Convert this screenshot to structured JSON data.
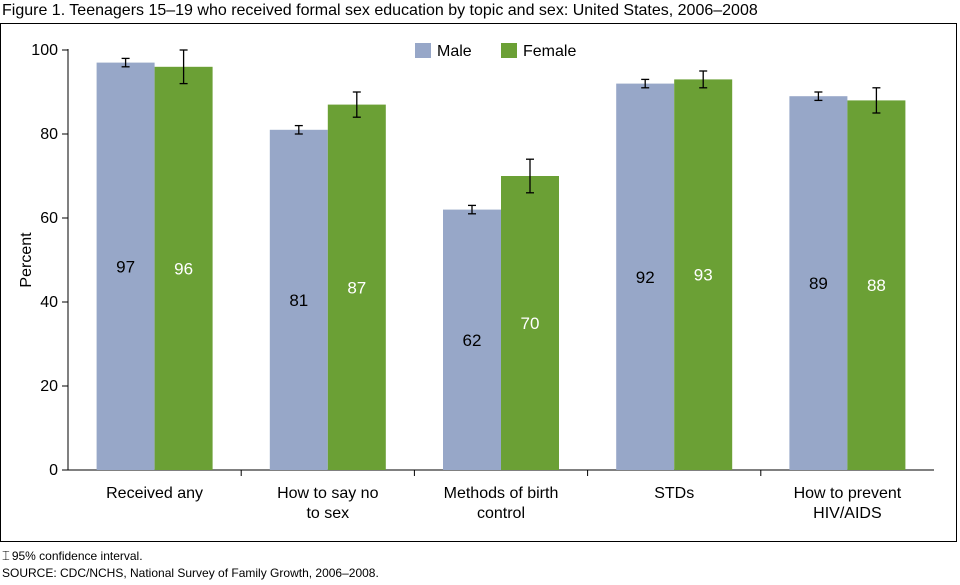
{
  "title": "Figure 1. Teenagers 15–19 who received formal sex education by topic and sex: United States, 2006–2008",
  "footnotes": {
    "ci_glyph": "⌶",
    "ci_text": "95% confidence interval.",
    "source": "SOURCE: CDC/NCHS, National Survey of Family Growth, 2006–2008."
  },
  "colors": {
    "male": "#97a7c8",
    "female": "#6ba035"
  },
  "chart_data": {
    "type": "bar",
    "ylabel": "Percent",
    "ylim": [
      0,
      100
    ],
    "yticks": [
      0,
      20,
      40,
      60,
      80,
      100
    ],
    "legend_position": "top-center",
    "categories": [
      [
        "Received any"
      ],
      [
        "How to say no",
        "to sex"
      ],
      [
        "Methods of birth",
        "control"
      ],
      [
        "STDs"
      ],
      [
        "How to prevent",
        "HIV/AIDS"
      ]
    ],
    "series": [
      {
        "name": "Male",
        "values": [
          97,
          81,
          62,
          92,
          89
        ],
        "ci_low": [
          96,
          80,
          61,
          91,
          88
        ],
        "ci_high": [
          98,
          82,
          63,
          93,
          90
        ]
      },
      {
        "name": "Female",
        "values": [
          96,
          87,
          70,
          93,
          88
        ],
        "ci_low": [
          92,
          84,
          66,
          91,
          85
        ],
        "ci_high": [
          100,
          90,
          74,
          95,
          91
        ]
      }
    ]
  }
}
